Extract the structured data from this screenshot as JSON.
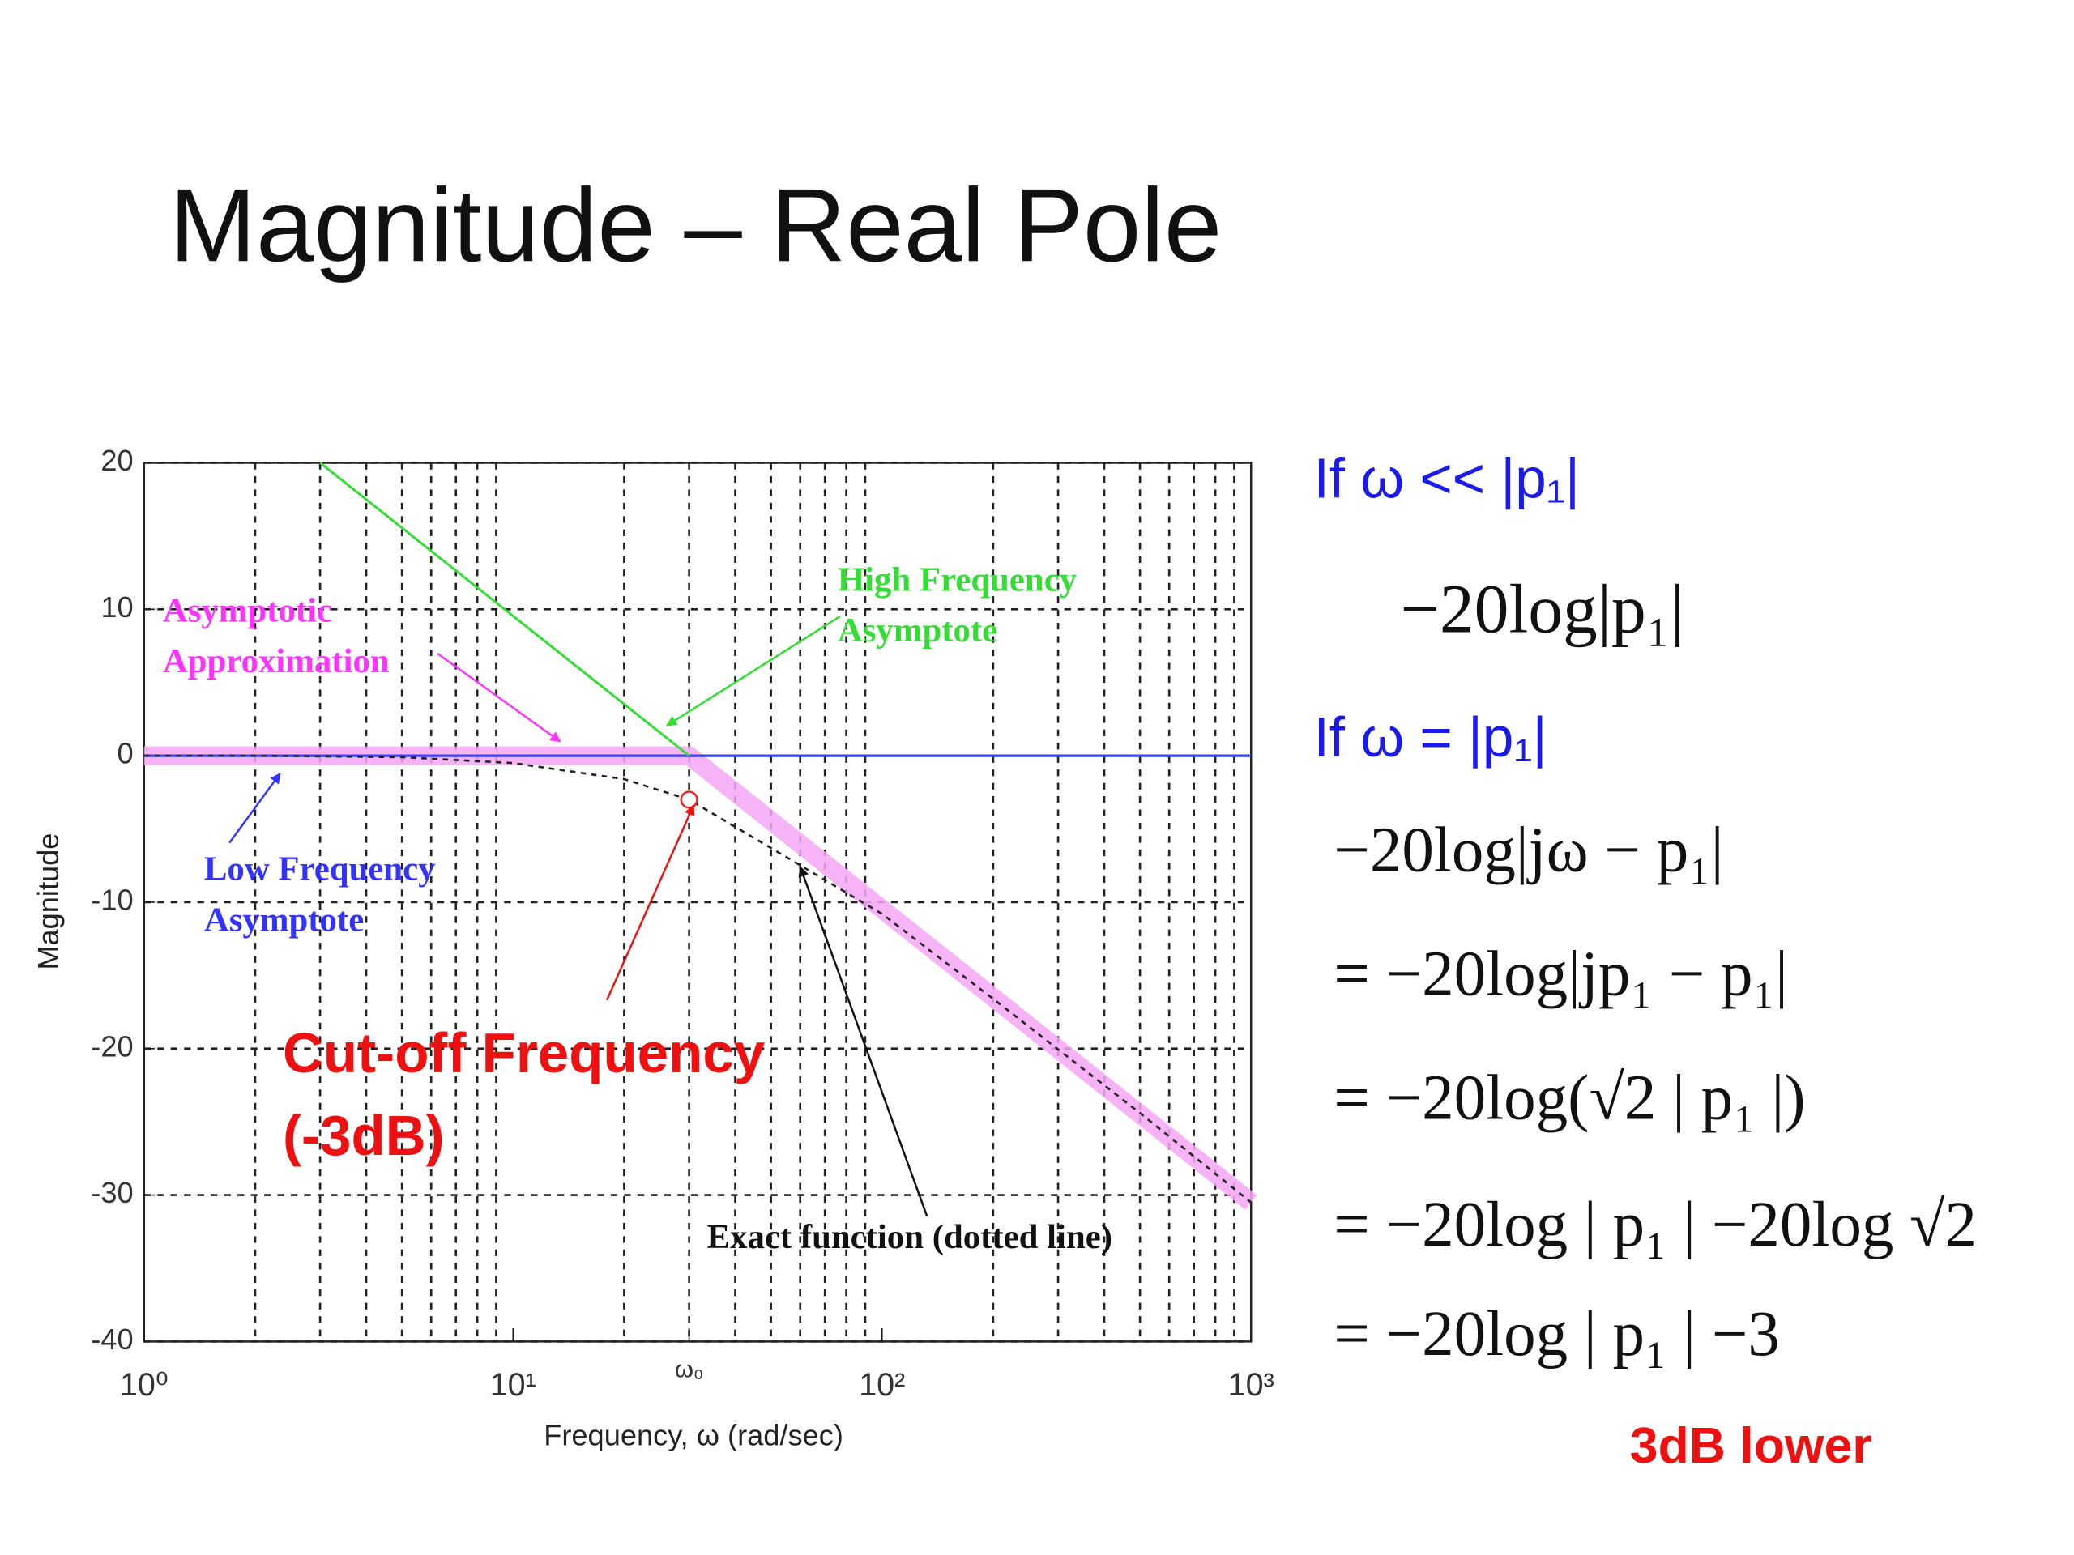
{
  "title": "Magnitude – Real Pole",
  "chart_data": {
    "type": "line",
    "xlabel": "Frequency, ω (rad/sec)",
    "ylabel": "Magnitude",
    "xscale": "log",
    "grid": true,
    "xlim": [
      1,
      1000
    ],
    "ylim": [
      -40,
      20
    ],
    "xticks": [
      {
        "value": 1,
        "label": "10⁰"
      },
      {
        "value": 10,
        "label": "10¹"
      },
      {
        "value": 30,
        "label": "ω₀"
      },
      {
        "value": 100,
        "label": "10²"
      },
      {
        "value": 1000,
        "label": "10³"
      }
    ],
    "xminor": [
      2,
      3,
      4,
      5,
      6,
      7,
      8,
      9,
      20,
      30,
      40,
      50,
      60,
      70,
      80,
      90,
      200,
      300,
      400,
      500,
      600,
      700,
      800,
      900
    ],
    "yticks": [
      -40,
      -30,
      -20,
      -10,
      0,
      10,
      20
    ],
    "series": [
      {
        "color": "#f5a6f5",
        "x": [
          1,
          30,
          1000
        ],
        "values": [
          0,
          0,
          -30.5
        ]
      },
      {
        "color": "#3344ff",
        "x": [
          1,
          1000
        ],
        "values": [
          0,
          0
        ]
      },
      {
        "color": "#33dd33",
        "x": [
          3,
          30
        ],
        "values": [
          20,
          0
        ]
      },
      {
        "color": "#222222",
        "dashed": true,
        "x": [
          1,
          2,
          5,
          10,
          20,
          30,
          50,
          100,
          200,
          500,
          1000
        ],
        "values": [
          0,
          0,
          -0.1,
          -0.5,
          -1.6,
          -3,
          -6.3,
          -10.8,
          -16.6,
          -24.4,
          -30.5
        ]
      }
    ],
    "marker": {
      "x": 30,
      "value": -3,
      "color": "#ee2222"
    },
    "annotations": [
      {
        "lines": [
          "Asymptotic",
          "Approximation"
        ],
        "color": "#ff33ff"
      },
      {
        "lines": [
          "High Frequency",
          "Asymptote"
        ],
        "color": "#33dd33"
      },
      {
        "lines": [
          "Low Frequency",
          "Asymptote"
        ],
        "color": "#3333ff"
      },
      {
        "lines": [
          "Cut-off Frequency",
          "(-3dB)"
        ],
        "color": "#ee1111"
      },
      {
        "lines": [
          "Exact function (dotted line)"
        ],
        "color": "#111111"
      }
    ]
  },
  "equations": [
    "If ω << |p₁|",
    "−20log|p₁|",
    "If ω = |p₁|",
    "−20log|jω − p₁|",
    "= −20log|jp₁ − p₁|",
    "= −20log(√2 | p₁ |)",
    "= −20log | p₁ | −20log √2",
    "= −20log | p₁ | −3"
  ],
  "note": "3dB lower"
}
